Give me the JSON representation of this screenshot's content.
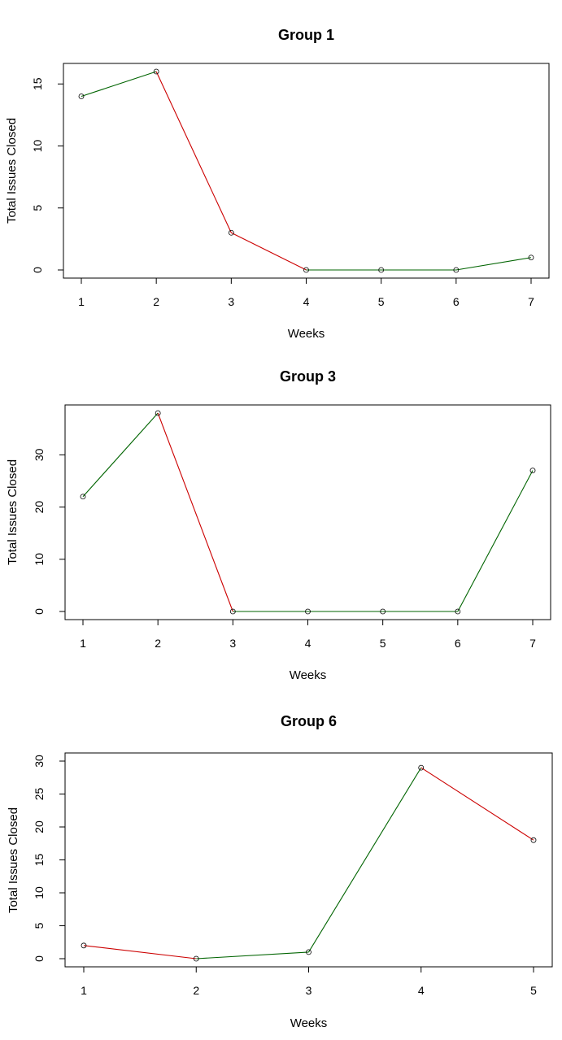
{
  "chart_data": [
    {
      "type": "line",
      "title": "Group 1",
      "xlabel": "Weeks",
      "ylabel": "Total Issues Closed",
      "x": [
        1,
        2,
        3,
        4,
        5,
        6,
        7
      ],
      "values": [
        14,
        16,
        3,
        0,
        0,
        0,
        1
      ],
      "xlim": [
        1,
        7
      ],
      "ylim": [
        0,
        16
      ],
      "xticks": [
        1,
        2,
        3,
        4,
        5,
        6,
        7
      ],
      "yticks": [
        0,
        5,
        10,
        15
      ],
      "colors": {
        "increase": "#006400",
        "decrease": "#cc0000",
        "flat": "#006400"
      },
      "grid": false
    },
    {
      "type": "line",
      "title": "Group 3",
      "xlabel": "Weeks",
      "ylabel": "Total Issues Closed",
      "x": [
        1,
        2,
        3,
        4,
        5,
        6,
        7
      ],
      "values": [
        22,
        38,
        0,
        0,
        0,
        0,
        27
      ],
      "xlim": [
        1,
        7
      ],
      "ylim": [
        0,
        38
      ],
      "xticks": [
        1,
        2,
        3,
        4,
        5,
        6,
        7
      ],
      "yticks": [
        0,
        10,
        20,
        30
      ],
      "colors": {
        "increase": "#006400",
        "decrease": "#cc0000",
        "flat": "#006400"
      },
      "grid": false
    },
    {
      "type": "line",
      "title": "Group 6",
      "xlabel": "Weeks",
      "ylabel": "Total Issues Closed",
      "x": [
        1,
        2,
        3,
        4,
        5
      ],
      "values": [
        2,
        0,
        1,
        29,
        18
      ],
      "xlim": [
        1,
        5
      ],
      "ylim": [
        0,
        30
      ],
      "xticks": [
        1,
        2,
        3,
        4,
        5
      ],
      "yticks": [
        0,
        5,
        10,
        15,
        20,
        25,
        30
      ],
      "colors": {
        "increase": "#006400",
        "decrease": "#cc0000",
        "flat": "#006400"
      },
      "grid": false
    }
  ]
}
